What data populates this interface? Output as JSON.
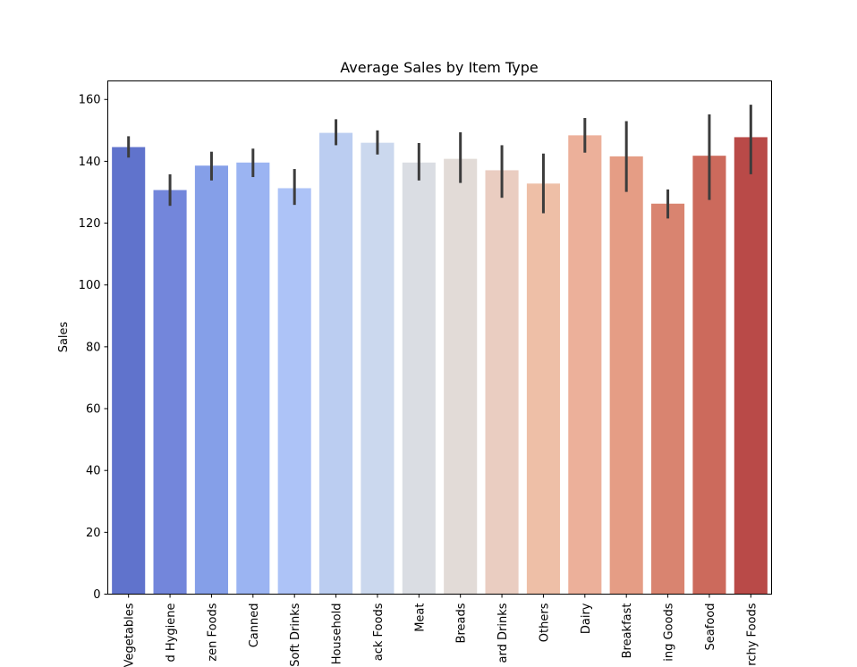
{
  "chart_data": {
    "type": "bar",
    "title": "Average Sales by Item Type",
    "xlabel": "",
    "ylabel": "Sales",
    "ylim": [
      0,
      166
    ],
    "yticks": [
      0,
      20,
      40,
      60,
      80,
      100,
      120,
      140,
      160
    ],
    "grid": false,
    "categories": [
      "Fruits and Vegetables",
      "Health and Hygiene",
      "Frozen Foods",
      "Canned",
      "Soft Drinks",
      "Household",
      "Snack Foods",
      "Meat",
      "Breads",
      "Hard Drinks",
      "Others",
      "Dairy",
      "Breakfast",
      "Baking Goods",
      "Seafood",
      "Starchy Foods"
    ],
    "tick_labels": [
      "Vegetables",
      "d Hygiene",
      "zen Foods",
      "Canned",
      "Soft Drinks",
      "Household",
      "ack Foods",
      "Meat",
      "Breads",
      "ard Drinks",
      "Others",
      "Dairy",
      "Breakfast",
      "ing Goods",
      "Seafood",
      "rchy Foods"
    ],
    "values": [
      144.6,
      130.7,
      138.6,
      139.6,
      131.3,
      149.2,
      146.0,
      139.6,
      140.8,
      137.1,
      132.8,
      148.4,
      141.6,
      126.3,
      141.8,
      147.8
    ],
    "error_low": [
      141.2,
      125.6,
      133.8,
      134.9,
      125.9,
      145.2,
      142.2,
      133.8,
      133.0,
      128.2,
      123.2,
      142.8,
      130.1,
      121.5,
      127.5,
      135.8
    ],
    "error_high": [
      148.1,
      135.8,
      143.1,
      144.1,
      137.5,
      153.6,
      150.0,
      145.9,
      149.4,
      145.2,
      142.5,
      154.0,
      153.0,
      130.9,
      155.2,
      158.3
    ],
    "colors": [
      "#6073cc",
      "#7386db",
      "#859fe8",
      "#9bb4f2",
      "#adc3f7",
      "#bbcdf1",
      "#cbd8ee",
      "#dadde3",
      "#e2dbd7",
      "#eacdc1",
      "#eebfa7",
      "#ecb09a",
      "#e59d85",
      "#d98470",
      "#cc6a5c",
      "#b94a48"
    ]
  }
}
